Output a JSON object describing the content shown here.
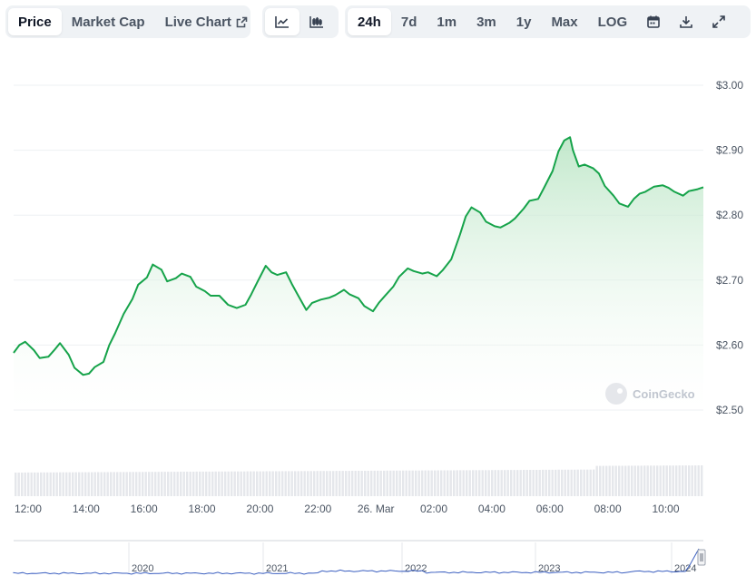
{
  "toolbar": {
    "tabs": [
      {
        "label": "Price",
        "active": true
      },
      {
        "label": "Market Cap",
        "active": false
      },
      {
        "label": "Live Chart",
        "active": false
      }
    ],
    "chart_types": [
      {
        "icon": "line-chart-icon",
        "active": true
      },
      {
        "icon": "candlestick-chart-icon",
        "active": false
      }
    ],
    "ranges": [
      {
        "label": "24h",
        "active": true
      },
      {
        "label": "7d",
        "active": false
      },
      {
        "label": "1m",
        "active": false
      },
      {
        "label": "3m",
        "active": false
      },
      {
        "label": "1y",
        "active": false
      },
      {
        "label": "Max",
        "active": false
      },
      {
        "label": "LOG",
        "active": false
      }
    ],
    "tools": [
      "calendar-icon",
      "download-icon",
      "expand-icon"
    ]
  },
  "watermark": "CoinGecko",
  "colors": {
    "line": "#16a34a",
    "fill_top": "#b7e4c2",
    "volume": "#e5e7eb",
    "navigator_line": "#3b5fc0",
    "grid": "#eef0f3"
  },
  "chart_data": {
    "type": "area",
    "title": "",
    "xlabel": "",
    "ylabel": "",
    "ylim": [
      2.455,
      3.0
    ],
    "y_ticks": [
      "$3.00",
      "$2.90",
      "$2.80",
      "$2.70",
      "$2.60",
      "$2.50"
    ],
    "y_tick_values": [
      3.0,
      2.9,
      2.8,
      2.7,
      2.6,
      2.5
    ],
    "x_ticks": [
      "12:00",
      "14:00",
      "16:00",
      "18:00",
      "20:00",
      "22:00",
      "26. Mar",
      "02:00",
      "04:00",
      "06:00",
      "08:00",
      "10:00"
    ],
    "x_tick_hours": [
      12,
      14,
      16,
      18,
      20,
      22,
      24,
      26,
      28,
      30,
      32,
      34
    ],
    "x_range_hours": [
      11.5,
      35.3
    ],
    "series": [
      {
        "hours": [
          11.5,
          11.7,
          11.9,
          12.2,
          12.4,
          12.7,
          12.9,
          13.1,
          13.4,
          13.6,
          13.9,
          14.1,
          14.3,
          14.6,
          14.8,
          15.0,
          15.3,
          15.6,
          15.8,
          16.1,
          16.3,
          16.6,
          16.8,
          17.1,
          17.3,
          17.6,
          17.8,
          18.1,
          18.3,
          18.6,
          18.9,
          19.2,
          19.5,
          19.7,
          19.9,
          20.2,
          20.4,
          20.6,
          20.9,
          21.1,
          21.3,
          21.6,
          21.8,
          22.1,
          22.4,
          22.6,
          22.9,
          23.1,
          23.4,
          23.6,
          23.9,
          24.1,
          24.3,
          24.6,
          24.8,
          25.1,
          25.3,
          25.6,
          25.8,
          26.1,
          26.3,
          26.6,
          26.9,
          27.1,
          27.3,
          27.6,
          27.8,
          28.1,
          28.3,
          28.6,
          28.8,
          29.1,
          29.3,
          29.6,
          29.8,
          30.1,
          30.3,
          30.5,
          30.7,
          30.8,
          31.0,
          31.2,
          31.5,
          31.7,
          31.9,
          32.2,
          32.4,
          32.7,
          32.9,
          33.1,
          33.3,
          33.6,
          33.9,
          34.1,
          34.3,
          34.6,
          34.8,
          35.1,
          35.3
        ],
        "values": [
          2.588,
          2.6,
          2.605,
          2.592,
          2.58,
          2.582,
          2.592,
          2.603,
          2.585,
          2.565,
          2.554,
          2.556,
          2.566,
          2.574,
          2.6,
          2.618,
          2.648,
          2.671,
          2.693,
          2.704,
          2.724,
          2.716,
          2.698,
          2.703,
          2.71,
          2.705,
          2.69,
          2.683,
          2.676,
          2.676,
          2.662,
          2.657,
          2.662,
          2.678,
          2.696,
          2.722,
          2.712,
          2.708,
          2.712,
          2.694,
          2.678,
          2.654,
          2.665,
          2.67,
          2.673,
          2.677,
          2.685,
          2.678,
          2.672,
          2.66,
          2.652,
          2.665,
          2.675,
          2.69,
          2.705,
          2.718,
          2.714,
          2.71,
          2.712,
          2.706,
          2.715,
          2.732,
          2.77,
          2.798,
          2.812,
          2.804,
          2.79,
          2.783,
          2.781,
          2.788,
          2.795,
          2.81,
          2.822,
          2.825,
          2.842,
          2.868,
          2.898,
          2.915,
          2.92,
          2.9,
          2.875,
          2.878,
          2.872,
          2.864,
          2.845,
          2.83,
          2.818,
          2.813,
          2.825,
          2.833,
          2.836,
          2.844,
          2.846,
          2.842,
          2.836,
          2.83,
          2.837,
          2.84,
          2.843
        ]
      }
    ],
    "navigator": {
      "labels": [
        "2020",
        "2021",
        "2022",
        "2023",
        "2024"
      ]
    }
  }
}
